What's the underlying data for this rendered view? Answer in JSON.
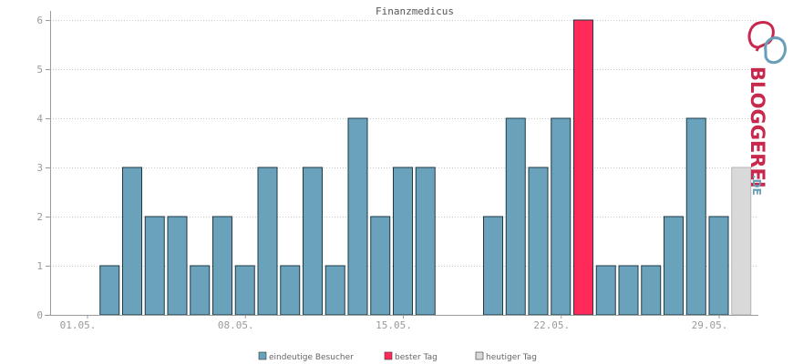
{
  "chart_data": {
    "type": "bar",
    "title": "Finanzmedicus",
    "ylim": [
      0,
      6
    ],
    "yticks": [
      0,
      1,
      2,
      3,
      4,
      5,
      6
    ],
    "x_tick_labels": [
      {
        "day": 1,
        "label": "01.05."
      },
      {
        "day": 8,
        "label": "08.05."
      },
      {
        "day": 15,
        "label": "15.05."
      },
      {
        "day": 22,
        "label": "22.05."
      },
      {
        "day": 29,
        "label": "29.05."
      }
    ],
    "days": [
      1,
      2,
      3,
      4,
      5,
      6,
      7,
      8,
      9,
      10,
      11,
      12,
      13,
      14,
      15,
      16,
      17,
      18,
      19,
      20,
      21,
      22,
      23,
      24,
      25,
      26,
      27,
      28,
      29,
      30,
      31
    ],
    "values": [
      0,
      1,
      3,
      2,
      2,
      1,
      2,
      1,
      3,
      1,
      3,
      1,
      4,
      2,
      3,
      3,
      0,
      0,
      2,
      4,
      3,
      4,
      6,
      1,
      1,
      1,
      2,
      4,
      2,
      3,
      0
    ],
    "best_day": 23,
    "today": 30,
    "grid": true,
    "colors": {
      "visitors": "#6aa2bc",
      "best": "#ff2a5a",
      "today": "#d9d9d9",
      "bar_stroke": "#1e3a46",
      "today_stroke": "#b5b5b5",
      "grid": "#c8c8c8",
      "axis": "#9a9a9a"
    },
    "legend": {
      "placement": "bottom",
      "items": [
        {
          "label": "eindeutige Besucher",
          "color": "#6aa2bc"
        },
        {
          "label": "bester Tag",
          "color": "#ff2a5a"
        },
        {
          "label": "heutiger Tag",
          "color": "#d9d9d9"
        }
      ]
    }
  },
  "logo": {
    "text": "BLOGGEREI",
    "suffix": ".DE",
    "color_main": "#c8284d",
    "color_suffix": "#6a9db8"
  }
}
